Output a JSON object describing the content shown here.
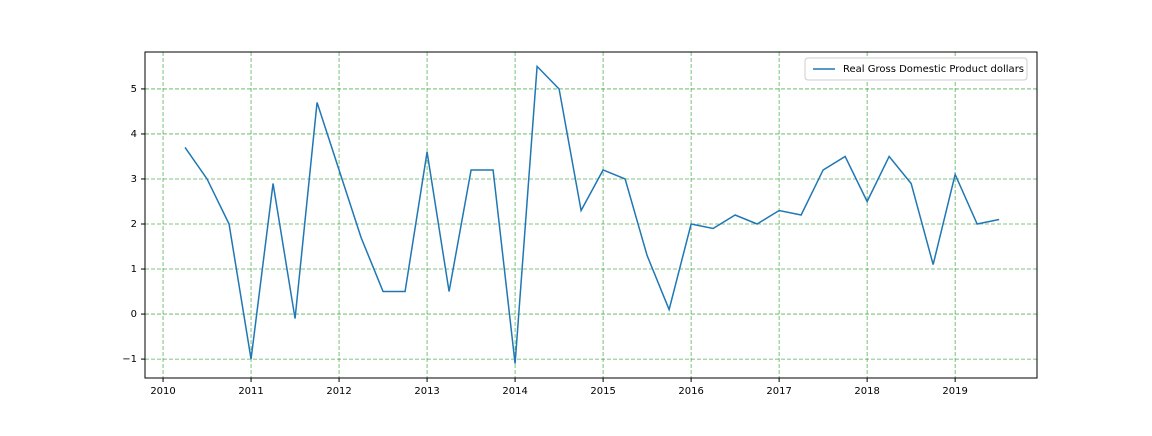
{
  "chart_data": {
    "type": "line",
    "x": [
      2010.25,
      2010.5,
      2010.75,
      2011,
      2011.25,
      2011.5,
      2011.75,
      2012,
      2012.25,
      2012.5,
      2012.75,
      2013,
      2013.25,
      2013.5,
      2013.75,
      2014,
      2014.25,
      2014.5,
      2014.75,
      2015,
      2015.25,
      2015.5,
      2015.75,
      2016,
      2016.25,
      2016.5,
      2016.75,
      2017,
      2017.25,
      2017.5,
      2017.75,
      2018,
      2018.25,
      2018.5,
      2018.75,
      2019,
      2019.25,
      2019.5
    ],
    "series": [
      {
        "name": "Real Gross Domestic Product dollars",
        "color": "#1f77b4",
        "values": [
          3.7,
          3.0,
          2.0,
          -1.0,
          2.9,
          -0.1,
          4.7,
          3.2,
          1.7,
          0.5,
          0.5,
          3.6,
          0.5,
          3.2,
          3.2,
          -1.1,
          5.5,
          5.0,
          2.3,
          3.2,
          3.0,
          1.3,
          0.1,
          2.0,
          1.9,
          2.2,
          2.0,
          2.3,
          2.2,
          3.2,
          3.5,
          2.5,
          3.5,
          2.9,
          1.1,
          3.1,
          2.0,
          2.1
        ]
      }
    ],
    "xlim": [
      2009.795,
      2019.93
    ],
    "xticks": [
      2010,
      2011,
      2012,
      2013,
      2014,
      2015,
      2016,
      2017,
      2018,
      2019
    ],
    "ylim": [
      -1.42,
      5.82
    ],
    "yticks": [
      {
        "value": -1,
        "label": "−1"
      },
      0,
      1,
      2,
      3,
      4,
      5
    ],
    "grid": true,
    "grid_color": "#2ca02c",
    "legend": "upper right"
  }
}
